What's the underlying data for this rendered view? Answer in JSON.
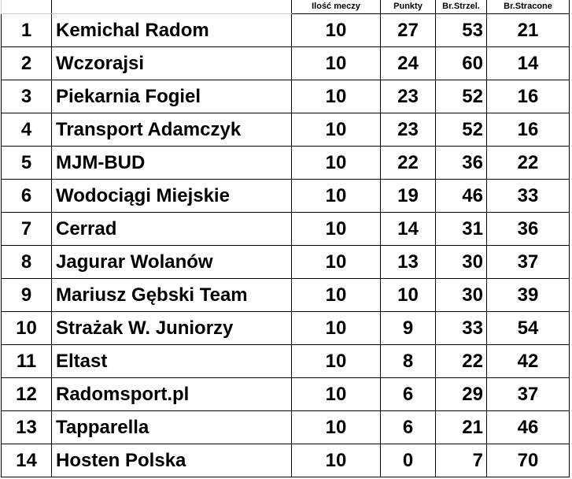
{
  "headers": {
    "rank": "",
    "team": "",
    "matches": "Ilość meczy",
    "points": "Punkty",
    "goals_for": "Br.Strzel.",
    "goals_against": "Br.Stracone"
  },
  "rows": [
    {
      "rank": "1",
      "team": "Kemichal Radom",
      "matches": "10",
      "points": "27",
      "goals_for": "53",
      "goals_against": "21"
    },
    {
      "rank": "2",
      "team": "Wczorajsi",
      "matches": "10",
      "points": "24",
      "goals_for": "60",
      "goals_against": "14"
    },
    {
      "rank": "3",
      "team": "Piekarnia Fogiel",
      "matches": "10",
      "points": "23",
      "goals_for": "52",
      "goals_against": "16"
    },
    {
      "rank": "4",
      "team": "Transport Adamczyk",
      "matches": "10",
      "points": "23",
      "goals_for": "52",
      "goals_against": "16"
    },
    {
      "rank": "5",
      "team": "MJM-BUD",
      "matches": "10",
      "points": "22",
      "goals_for": "36",
      "goals_against": "22"
    },
    {
      "rank": "6",
      "team": "Wodociągi Miejskie",
      "matches": "10",
      "points": "19",
      "goals_for": "46",
      "goals_against": "33"
    },
    {
      "rank": "7",
      "team": "Cerrad",
      "matches": "10",
      "points": "14",
      "goals_for": "31",
      "goals_against": "36"
    },
    {
      "rank": "8",
      "team": "Jagurar Wolanów",
      "matches": "10",
      "points": "13",
      "goals_for": "30",
      "goals_against": "37"
    },
    {
      "rank": "9",
      "team": "Mariusz Gębski Team",
      "matches": "10",
      "points": "10",
      "goals_for": "30",
      "goals_against": "39"
    },
    {
      "rank": "10",
      "team": "Strażak W. Juniorzy",
      "matches": "10",
      "points": "9",
      "goals_for": "33",
      "goals_against": "54"
    },
    {
      "rank": "11",
      "team": "Eltast",
      "matches": "10",
      "points": "8",
      "goals_for": "22",
      "goals_against": "42"
    },
    {
      "rank": "12",
      "team": "Radomsport.pl",
      "matches": "10",
      "points": "6",
      "goals_for": "29",
      "goals_against": "37"
    },
    {
      "rank": "13",
      "team": "Tapparella",
      "matches": "10",
      "points": "6",
      "goals_for": "21",
      "goals_against": "46"
    },
    {
      "rank": "14",
      "team": "Hosten Polska",
      "matches": "10",
      "points": "0",
      "goals_for": "7",
      "goals_against": "70"
    }
  ]
}
